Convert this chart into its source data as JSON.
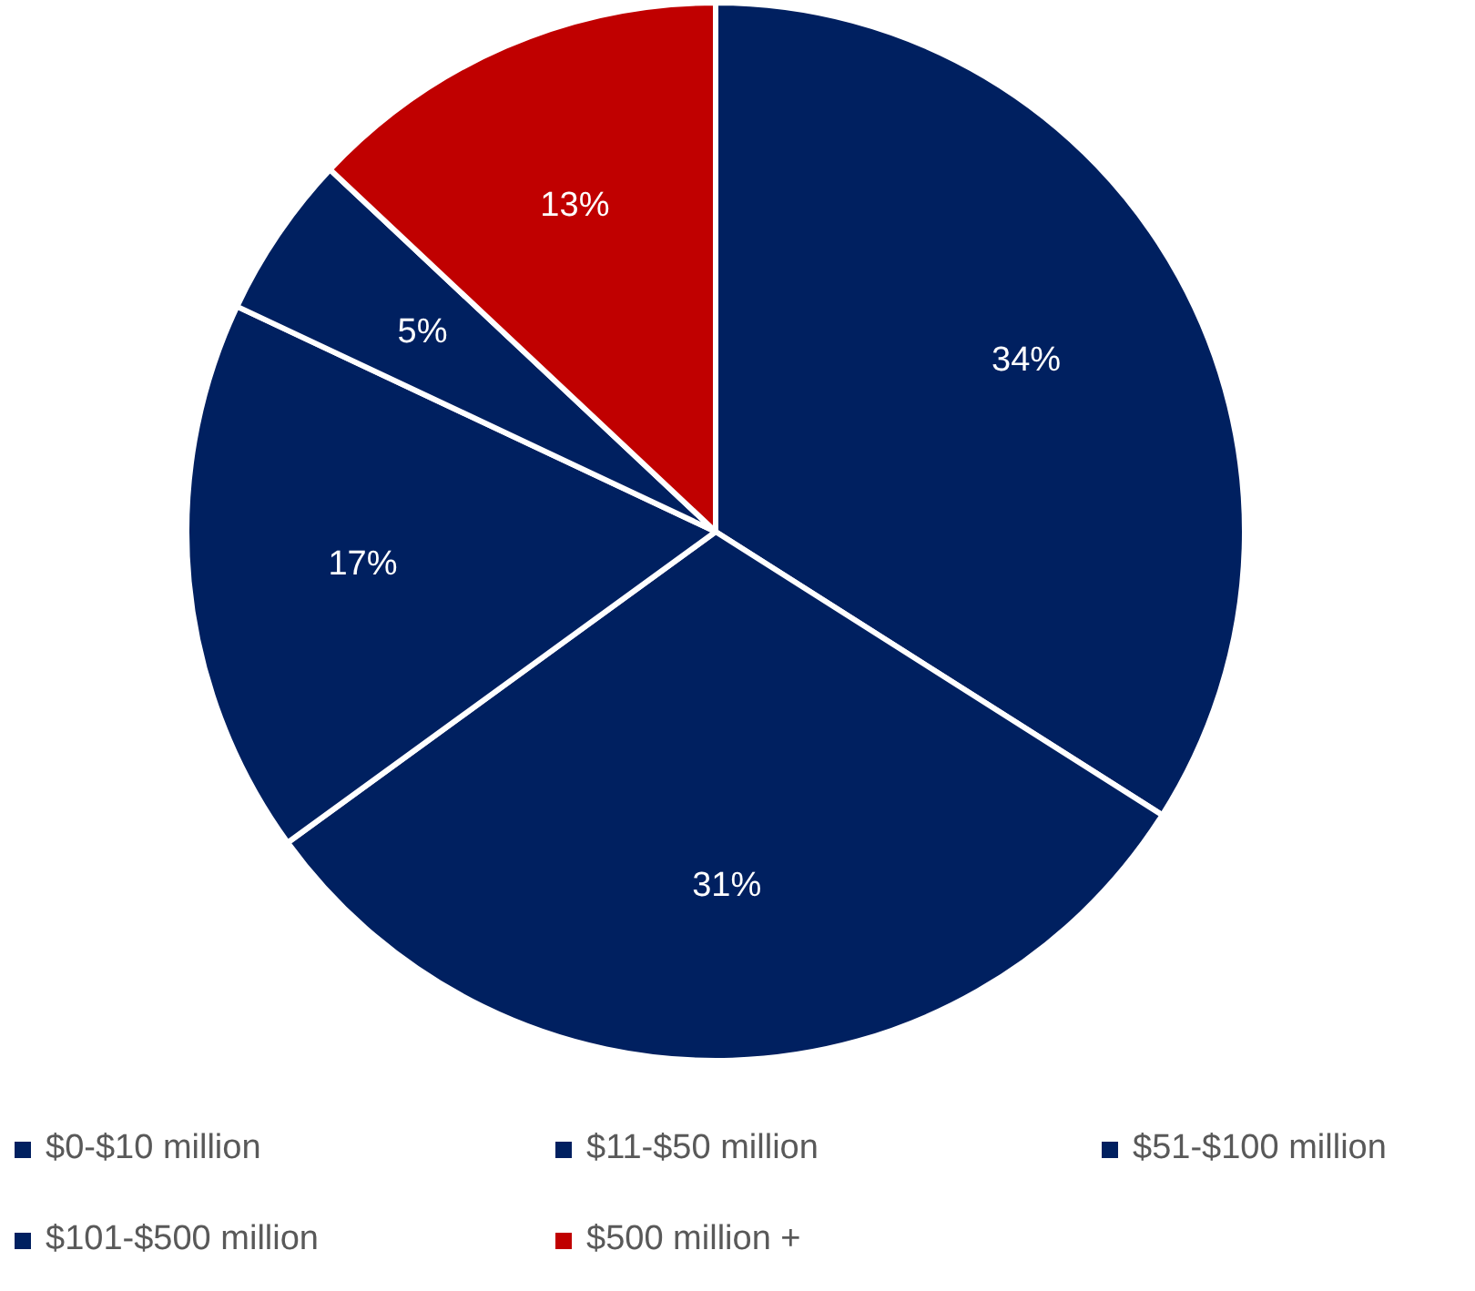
{
  "chart_data": {
    "type": "pie",
    "categories": [
      "$0-$10 million",
      "$11-$50 million",
      "$51-$100 million",
      "$101-$500 million",
      "$500 million +"
    ],
    "values": [
      34,
      31,
      17,
      5,
      13
    ],
    "value_labels": [
      "34%",
      "31%",
      "17%",
      "5%",
      "13%"
    ],
    "colors": [
      "#002060",
      "#002060",
      "#002060",
      "#002060",
      "#c00000"
    ],
    "legend": "bottom"
  }
}
